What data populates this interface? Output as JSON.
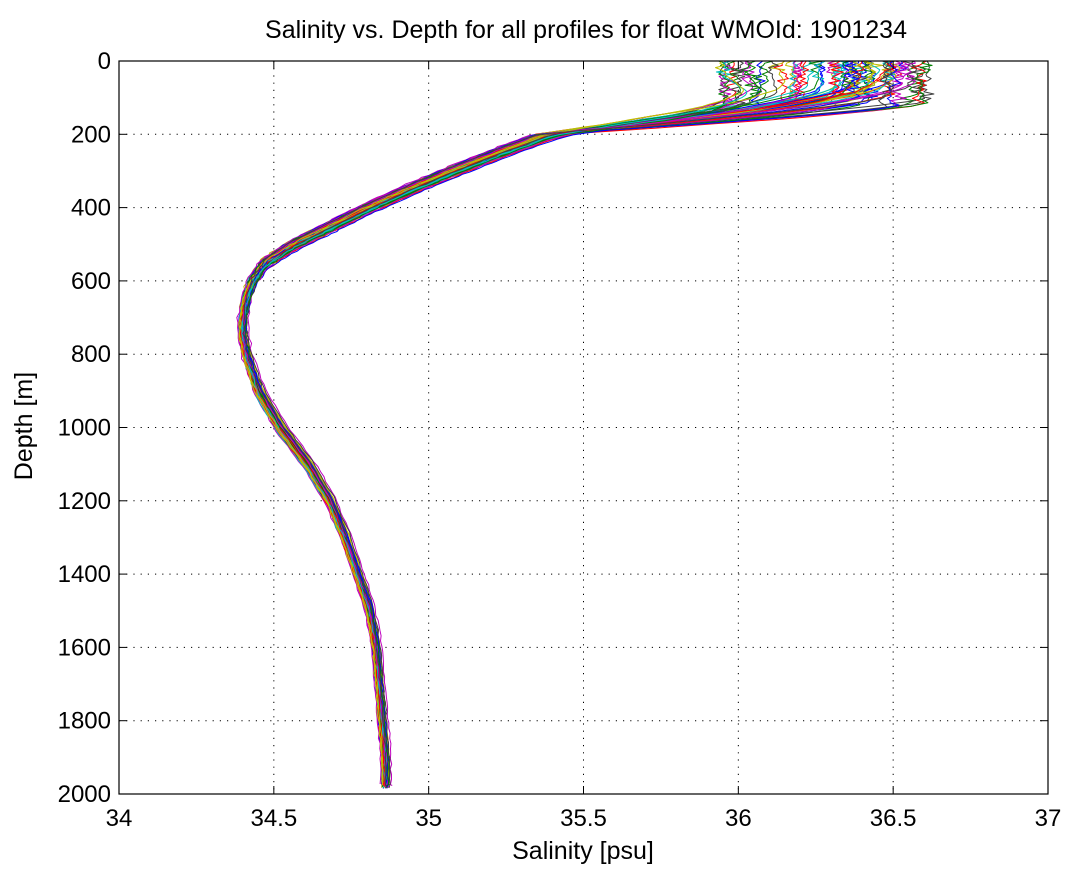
{
  "chart_data": {
    "type": "line",
    "title": "Salinity vs. Depth for all profiles for float WMOId: 1901234",
    "xlabel": "Salinity [psu]",
    "ylabel": "Depth [m]",
    "xlim": [
      34,
      37
    ],
    "ylim": [
      0,
      2000
    ],
    "y_reversed": true,
    "grid": true,
    "legend": "none",
    "x_ticks": [
      "34",
      "34.5",
      "35",
      "35.5",
      "36",
      "36.5",
      "37"
    ],
    "y_ticks": [
      "0",
      "200",
      "400",
      "600",
      "800",
      "1000",
      "1200",
      "1400",
      "1600",
      "1800",
      "2000"
    ],
    "profile_count_approx": 70,
    "series_colors": [
      "#0000ff",
      "#008000",
      "#ff0000",
      "#00bfbf",
      "#bf00bf",
      "#bfbf00",
      "#404040"
    ],
    "representative_profile": {
      "depth": [
        5,
        20,
        50,
        80,
        100,
        120,
        140,
        160,
        200,
        250,
        300,
        350,
        400,
        450,
        500,
        550,
        600,
        650,
        700,
        750,
        800,
        900,
        1000,
        1100,
        1200,
        1300,
        1400,
        1500,
        1600,
        1700,
        1800,
        1900,
        1980
      ],
      "salinity": [
        36.3,
        36.3,
        36.3,
        36.2,
        36.0,
        35.85,
        35.7,
        35.55,
        35.38,
        35.22,
        35.07,
        34.93,
        34.8,
        34.68,
        34.56,
        34.47,
        34.43,
        34.41,
        34.4,
        34.4,
        34.41,
        34.45,
        34.52,
        34.61,
        34.68,
        34.73,
        34.77,
        34.81,
        34.83,
        34.84,
        34.85,
        34.86,
        34.86
      ]
    },
    "surface_spread_max": 36.63,
    "surface_spread_min": 35.65
  }
}
